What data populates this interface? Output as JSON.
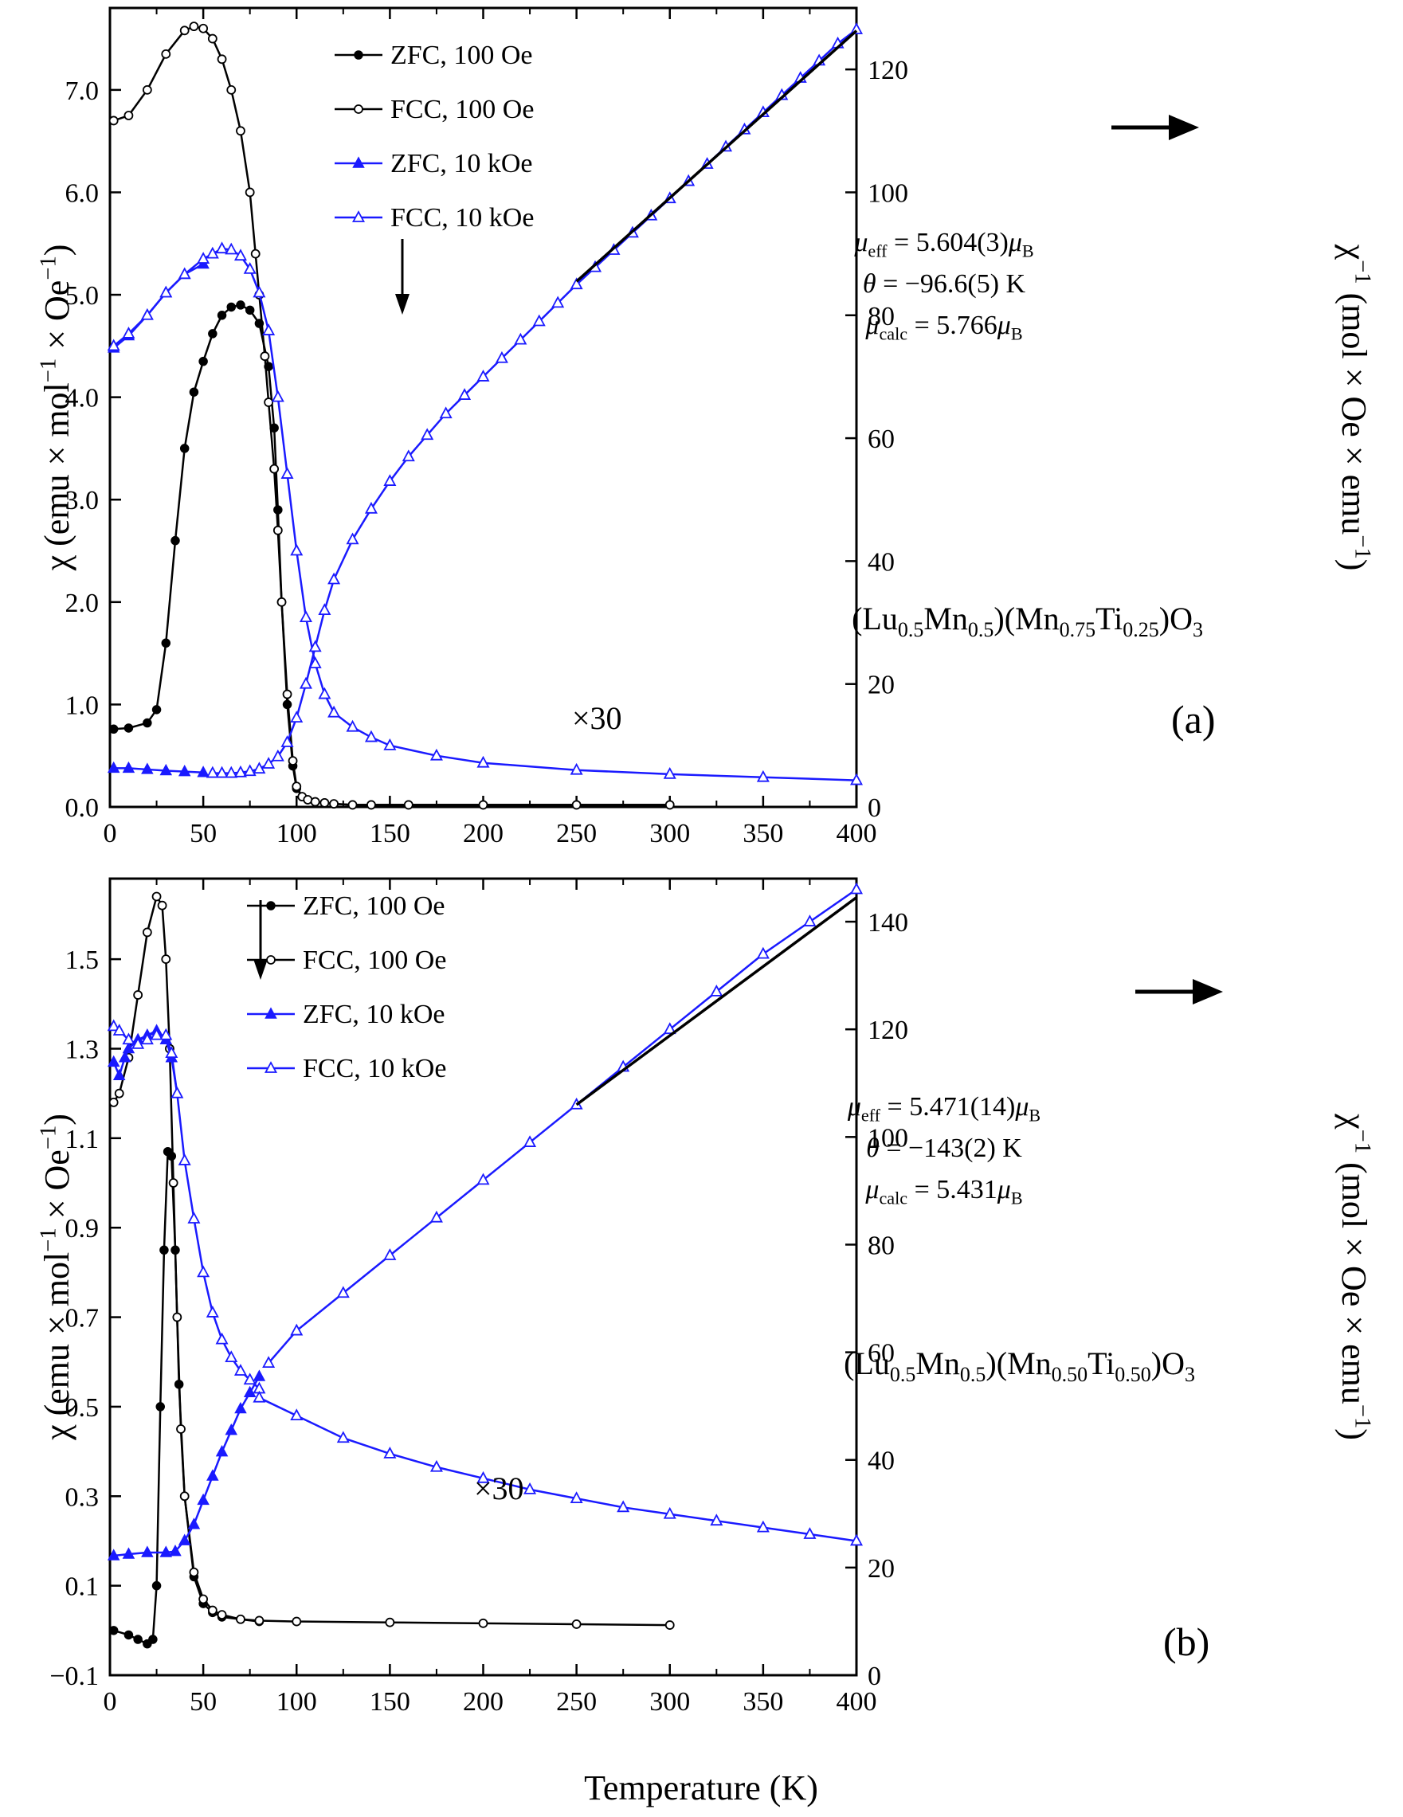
{
  "figure": {
    "xlabel": "Temperature (K)",
    "colors": {
      "black": "#000000",
      "blue": "#1a1aff"
    }
  },
  "chart_data": [
    {
      "type": "line",
      "panel_label": "(a)",
      "compound": [
        "(Lu",
        "0.5",
        "Mn",
        "0.5",
        ")(Mn",
        "0.75",
        "Ti",
        "0.25",
        ")O",
        "3"
      ],
      "xlim": [
        0,
        400
      ],
      "x_ticks": [
        0,
        50,
        100,
        150,
        200,
        250,
        300,
        350,
        400
      ],
      "ylim_left": [
        0,
        7.8
      ],
      "ylim_right": [
        0,
        130
      ],
      "yticks_left": [
        "0.0",
        "1.0",
        "2.0",
        "3.0",
        "4.0",
        "5.0",
        "6.0",
        "7.0"
      ],
      "yticks_right": [
        0,
        20,
        40,
        60,
        80,
        100,
        120
      ],
      "ylabel_left": [
        "χ (emu × mol",
        "−1",
        " × Oe",
        "−1",
        ")"
      ],
      "ylabel_right": [
        "χ",
        "−1",
        " (mol × Oe × emu",
        "−1",
        ")"
      ],
      "legend": [
        "ZFC, 100 Oe",
        "FCC, 100 Oe",
        "ZFC, 10 kOe",
        "FCC, 10 kOe"
      ],
      "multiplier": "×30",
      "params": {
        "mu_eff": [
          "μ",
          "eff",
          " = 5.604(3)",
          "μ",
          "B"
        ],
        "theta": [
          "θ",
          " = −96.6(5) K"
        ],
        "mu_calc": [
          "μ",
          "calc",
          " = 5.766",
          "μ",
          "B"
        ]
      },
      "series": [
        {
          "name": "ZFC, 100 Oe",
          "axis": "left",
          "color": "#000000",
          "marker": "circle-filled",
          "x": [
            2,
            10,
            20,
            25,
            30,
            35,
            40,
            45,
            50,
            55,
            60,
            65,
            70,
            75,
            80,
            85,
            88,
            90,
            92,
            95,
            98,
            100,
            103,
            106,
            110,
            115,
            120,
            130,
            140,
            160,
            200,
            250,
            300
          ],
          "y": [
            0.76,
            0.77,
            0.82,
            0.95,
            1.6,
            2.6,
            3.5,
            4.05,
            4.35,
            4.62,
            4.8,
            4.88,
            4.9,
            4.85,
            4.72,
            4.3,
            3.7,
            2.9,
            2.0,
            1.0,
            0.4,
            0.18,
            0.1,
            0.07,
            0.05,
            0.04,
            0.03,
            0.02,
            0.02,
            0.02,
            0.02,
            0.02,
            0.02
          ]
        },
        {
          "name": "FCC, 100 Oe",
          "axis": "left",
          "color": "#000000",
          "marker": "circle-open",
          "x": [
            2,
            10,
            20,
            30,
            40,
            45,
            50,
            55,
            60,
            65,
            70,
            75,
            78,
            80,
            83,
            85,
            88,
            90,
            92,
            95,
            98,
            100,
            103,
            106,
            110,
            115,
            120,
            130,
            140,
            160,
            200,
            250,
            300
          ],
          "y": [
            6.7,
            6.75,
            7.0,
            7.35,
            7.58,
            7.62,
            7.6,
            7.5,
            7.3,
            7.0,
            6.6,
            6.0,
            5.4,
            5.0,
            4.4,
            3.95,
            3.3,
            2.7,
            2.0,
            1.1,
            0.45,
            0.2,
            0.1,
            0.07,
            0.05,
            0.04,
            0.03,
            0.02,
            0.02,
            0.02,
            0.02,
            0.02,
            0.02
          ]
        },
        {
          "name": "ZFC, 10 kOe",
          "axis": "left",
          "color": "#1a1aff",
          "marker": "triangle-filled",
          "x": [
            2,
            10,
            20,
            30,
            40,
            50
          ],
          "y": [
            4.48,
            4.6,
            4.8,
            5.02,
            5.2,
            5.3
          ]
        },
        {
          "name": "FCC, 10 kOe",
          "axis": "left",
          "color": "#1a1aff",
          "marker": "triangle-open",
          "x": [
            2,
            10,
            20,
            30,
            40,
            50,
            55,
            60,
            65,
            70,
            75,
            80,
            85,
            90,
            95,
            100,
            105,
            110,
            115,
            120,
            130,
            140,
            150,
            175,
            200,
            250,
            300,
            350,
            400
          ],
          "y": [
            4.5,
            4.62,
            4.8,
            5.02,
            5.2,
            5.35,
            5.4,
            5.45,
            5.44,
            5.38,
            5.25,
            5.02,
            4.65,
            4.0,
            3.25,
            2.5,
            1.85,
            1.4,
            1.1,
            0.92,
            0.78,
            0.68,
            0.6,
            0.5,
            0.43,
            0.36,
            0.32,
            0.29,
            0.26
          ]
        },
        {
          "name": "ZFC, 10 kOe (inverse)",
          "axis": "right",
          "color": "#1a1aff",
          "marker": "triangle-filled",
          "x": [
            2,
            10,
            20,
            30,
            40,
            50
          ],
          "y": [
            6.3,
            6.3,
            6.1,
            5.9,
            5.75,
            5.6
          ]
        },
        {
          "name": "FCC, 10 kOe (inverse)",
          "axis": "right",
          "color": "#1a1aff",
          "marker": "triangle-open",
          "x": [
            55,
            60,
            65,
            70,
            75,
            80,
            85,
            90,
            95,
            100,
            105,
            110,
            115,
            120,
            130,
            140,
            150,
            160,
            170,
            180,
            190,
            200,
            210,
            220,
            230,
            240,
            250,
            260,
            270,
            280,
            290,
            300,
            310,
            320,
            330,
            340,
            350,
            360,
            370,
            380,
            390,
            400
          ],
          "y": [
            5.5,
            5.5,
            5.5,
            5.6,
            5.8,
            6.2,
            7.0,
            8.2,
            10.5,
            14.5,
            20,
            26,
            32,
            37,
            43.5,
            48.5,
            53,
            57,
            60.5,
            64,
            67,
            70,
            73,
            76,
            79,
            82,
            85,
            87.8,
            90.6,
            93.4,
            96.2,
            99,
            101.8,
            104.6,
            107.4,
            110.2,
            113,
            115.8,
            118.6,
            121.4,
            124.2,
            126.5
          ]
        },
        {
          "name": "Curie-Weiss fit",
          "axis": "right",
          "color": "#000000",
          "marker": "none",
          "x": [
            250,
            400
          ],
          "y": [
            85.5,
            126.3
          ]
        }
      ]
    },
    {
      "type": "line",
      "panel_label": "(b)",
      "compound": [
        "(Lu",
        "0.5",
        "Mn",
        "0.5",
        ")(Mn",
        "0.50",
        "Ti",
        "0.50",
        ")O",
        "3"
      ],
      "xlim": [
        0,
        400
      ],
      "x_ticks": [
        0,
        50,
        100,
        150,
        200,
        250,
        300,
        350,
        400
      ],
      "ylim_left": [
        -0.1,
        1.68
      ],
      "ylim_right": [
        0,
        148
      ],
      "yticks_left": [
        "−0.1",
        "0.1",
        "0.3",
        "0.5",
        "0.7",
        "0.9",
        "1.1",
        "1.3",
        "1.5"
      ],
      "yticks_right": [
        0,
        20,
        40,
        60,
        80,
        100,
        120,
        140
      ],
      "ylabel_left": [
        "χ (emu × mol",
        "−1",
        " × Oe",
        "−1",
        ")"
      ],
      "ylabel_right": [
        "χ",
        "−1",
        " (mol × Oe × emu",
        "−1",
        ")"
      ],
      "legend": [
        "ZFC, 100 Oe",
        "FCC, 100 Oe",
        "ZFC, 10 kOe",
        "FCC, 10 kOe"
      ],
      "multiplier": "×30",
      "params": {
        "mu_eff": [
          "μ",
          "eff",
          " = 5.471(14)",
          "μ",
          "B"
        ],
        "theta": [
          "θ",
          " = −143(2) K"
        ],
        "mu_calc": [
          "μ",
          "calc",
          " = 5.431",
          "μ",
          "B"
        ]
      },
      "series": [
        {
          "name": "ZFC, 100 Oe",
          "axis": "left",
          "color": "#000000",
          "marker": "circle-filled",
          "x": [
            2,
            10,
            15,
            20,
            23,
            25,
            27,
            29,
            31,
            33,
            35,
            37,
            40,
            45,
            50,
            55,
            60,
            70,
            80
          ],
          "y": [
            0.0,
            -0.01,
            -0.02,
            -0.03,
            -0.02,
            0.1,
            0.5,
            0.85,
            1.07,
            1.06,
            0.85,
            0.55,
            0.3,
            0.12,
            0.06,
            0.04,
            0.03,
            0.025,
            0.02
          ]
        },
        {
          "name": "FCC, 100 Oe",
          "axis": "left",
          "color": "#000000",
          "marker": "circle-open",
          "x": [
            2,
            5,
            10,
            15,
            20,
            25,
            28,
            30,
            32,
            34,
            36,
            38,
            40,
            45,
            50,
            55,
            60,
            70,
            80,
            100,
            150,
            200,
            250,
            300
          ],
          "y": [
            1.18,
            1.2,
            1.28,
            1.42,
            1.56,
            1.64,
            1.62,
            1.5,
            1.3,
            1.0,
            0.7,
            0.45,
            0.3,
            0.13,
            0.07,
            0.045,
            0.035,
            0.025,
            0.022,
            0.02,
            0.018,
            0.016,
            0.014,
            0.012
          ]
        },
        {
          "name": "ZFC, 10 kOe",
          "axis": "left",
          "color": "#1a1aff",
          "marker": "triangle-filled",
          "x": [
            2,
            5,
            8,
            10,
            15,
            20,
            25,
            30,
            33,
            36
          ],
          "y": [
            1.27,
            1.24,
            1.28,
            1.3,
            1.32,
            1.33,
            1.34,
            1.32,
            1.28,
            1.2
          ]
        },
        {
          "name": "FCC, 10 kOe",
          "axis": "left",
          "color": "#1a1aff",
          "marker": "triangle-open",
          "x": [
            2,
            5,
            10,
            15,
            20,
            25,
            30,
            33,
            36,
            40,
            45,
            50,
            55,
            60,
            65,
            70,
            75,
            80
          ],
          "y": [
            1.35,
            1.34,
            1.32,
            1.31,
            1.32,
            1.33,
            1.33,
            1.29,
            1.2,
            1.05,
            0.92,
            0.8,
            0.71,
            0.65,
            0.61,
            0.58,
            0.56,
            0.54
          ]
        },
        {
          "name": "ZFC, 10 kOe (inverse)",
          "axis": "right",
          "color": "#1a1aff",
          "marker": "triangle-filled",
          "x": [
            2,
            10,
            20,
            30,
            35,
            40,
            45,
            50,
            55,
            60,
            65,
            70,
            75,
            80
          ],
          "y": [
            22.2,
            22.5,
            22.8,
            22.8,
            23,
            25,
            28,
            32.5,
            37,
            41.5,
            45.5,
            49.5,
            52.5,
            55.5
          ]
        },
        {
          "name": "FCC, 10 kOe (inverse)",
          "axis": "right",
          "color": "#1a1aff",
          "marker": "triangle-open",
          "x": [
            85,
            100,
            125,
            150,
            175,
            200,
            225,
            250,
            275,
            300,
            325,
            350,
            375,
            400
          ],
          "y": [
            58,
            64,
            71,
            78,
            85,
            92,
            99,
            106,
            113,
            120,
            127,
            134,
            140,
            146
          ]
        },
        {
          "name": "Curie-Weiss fit",
          "axis": "right",
          "color": "#000000",
          "marker": "none",
          "x": [
            250,
            400
          ],
          "y": [
            106,
            144.5
          ]
        },
        {
          "name": "FCC, 10 kOe (x30, high T)",
          "axis": "left",
          "color": "#1a1aff",
          "marker": "triangle-open",
          "x": [
            80,
            100,
            125,
            150,
            175,
            200,
            225,
            250,
            275,
            300,
            325,
            350,
            375,
            400
          ],
          "y": [
            0.52,
            0.48,
            0.43,
            0.395,
            0.365,
            0.34,
            0.315,
            0.295,
            0.275,
            0.26,
            0.245,
            0.23,
            0.215,
            0.2
          ]
        }
      ]
    }
  ]
}
